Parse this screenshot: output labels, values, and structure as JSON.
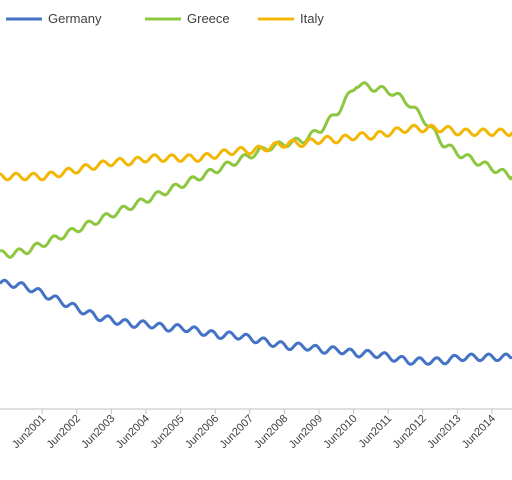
{
  "chart_data": {
    "type": "line",
    "title": "",
    "xlabel": "",
    "ylabel": "",
    "legend": {
      "position": "top-left"
    },
    "grid": false,
    "x_ticks": [
      "Jun2001",
      "Jun2002",
      "Jun2003",
      "Jun2004",
      "Jun2005",
      "Jun2006",
      "Jun2007",
      "Jun2008",
      "Jun2009",
      "Jun2010",
      "Jun2011",
      "Jun2012",
      "Jun2013",
      "Jun2014"
    ],
    "x_range": [
      2000.2,
      2015.0
    ],
    "y_range": [
      0,
      100
    ],
    "series": [
      {
        "name": "Germany",
        "color": "#4472C4",
        "x": [
          2000.2,
          2000.5,
          2001.0,
          2001.5,
          2002.0,
          2002.5,
          2003.0,
          2003.5,
          2004.0,
          2004.5,
          2005.0,
          2005.5,
          2006.0,
          2006.5,
          2007.0,
          2007.5,
          2008.0,
          2008.5,
          2009.0,
          2009.5,
          2010.0,
          2010.5,
          2011.0,
          2011.5,
          2012.0,
          2012.5,
          2013.0,
          2013.5,
          2014.0,
          2014.5,
          2015.0
        ],
        "y": [
          34,
          34,
          33,
          31,
          29,
          27,
          25,
          24,
          23,
          23,
          22,
          22,
          21,
          20,
          20,
          19,
          18,
          17,
          17,
          16,
          16,
          15,
          15,
          14,
          13,
          13,
          13,
          14,
          14,
          14,
          14
        ]
      },
      {
        "name": "Greece",
        "color": "#8DC63F",
        "x": [
          2000.2,
          2000.5,
          2001.0,
          2001.5,
          2002.0,
          2002.5,
          2003.0,
          2003.5,
          2004.0,
          2004.5,
          2005.0,
          2005.5,
          2006.0,
          2006.5,
          2007.0,
          2007.5,
          2008.0,
          2008.5,
          2009.0,
          2009.5,
          2010.0,
          2010.5,
          2011.0,
          2011.5,
          2012.0,
          2012.5,
          2013.0,
          2013.5,
          2014.0,
          2014.5,
          2015.0
        ],
        "y": [
          42,
          42,
          43,
          45,
          47,
          49,
          51,
          53,
          55,
          57,
          59,
          61,
          63,
          65,
          67,
          69,
          71,
          72,
          73,
          76,
          81,
          88,
          87,
          86,
          83,
          78,
          72,
          69,
          67,
          65,
          63
        ]
      },
      {
        "name": "Italy",
        "color": "#F2B705",
        "x": [
          2000.2,
          2000.5,
          2001.0,
          2001.5,
          2002.0,
          2002.5,
          2003.0,
          2003.5,
          2004.0,
          2004.5,
          2005.0,
          2005.5,
          2006.0,
          2006.5,
          2007.0,
          2007.5,
          2008.0,
          2008.5,
          2009.0,
          2009.5,
          2010.0,
          2010.5,
          2011.0,
          2011.5,
          2012.0,
          2012.5,
          2013.0,
          2013.5,
          2014.0,
          2014.5,
          2015.0
        ],
        "y": [
          63,
          63,
          63,
          63,
          64,
          65,
          66,
          67,
          67,
          68,
          68,
          68,
          68,
          69,
          70,
          70,
          71,
          72,
          72,
          73,
          73,
          74,
          74,
          75,
          76,
          76,
          76,
          75,
          75,
          75,
          75
        ]
      }
    ]
  }
}
